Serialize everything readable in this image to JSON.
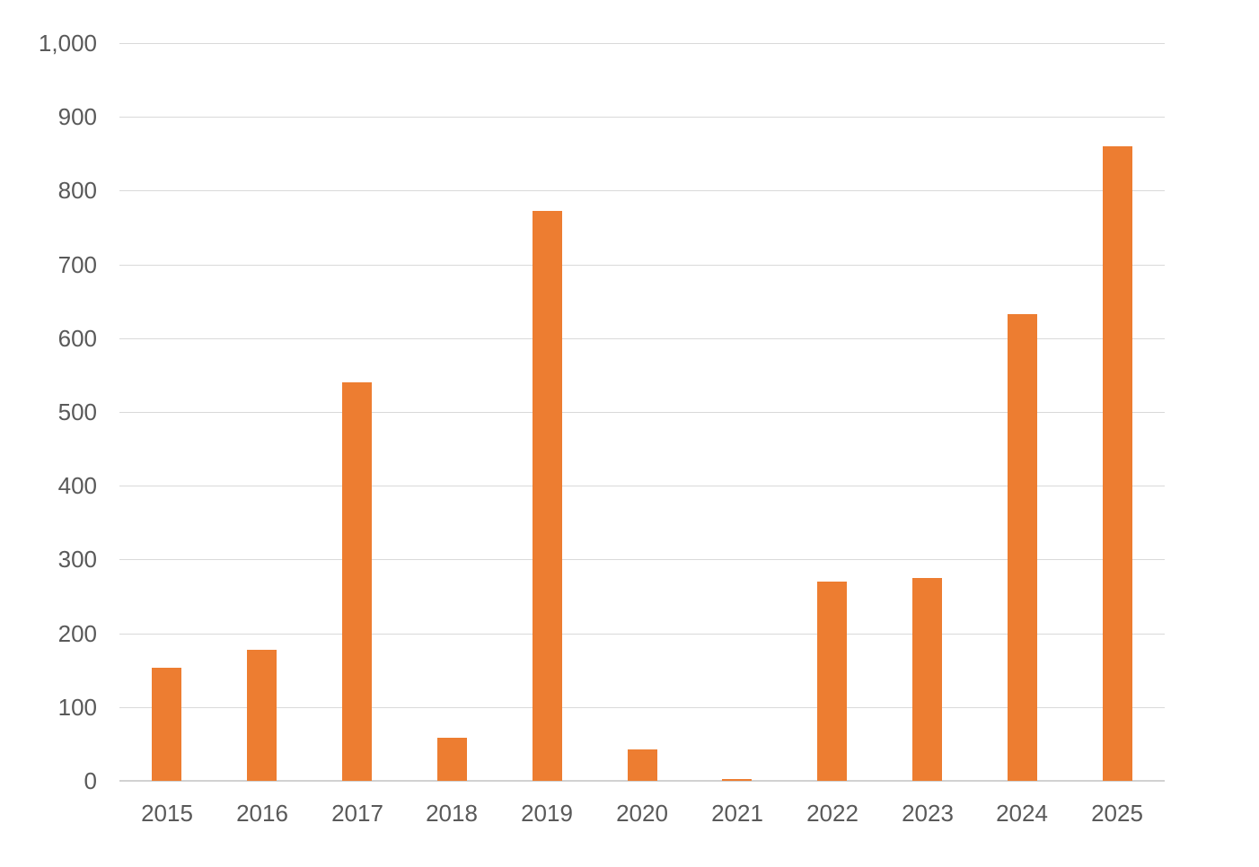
{
  "chart_data": {
    "type": "bar",
    "title": "",
    "xlabel": "",
    "ylabel": "",
    "categories": [
      "2015",
      "2016",
      "2017",
      "2018",
      "2019",
      "2020",
      "2021",
      "2022",
      "2023",
      "2024",
      "2025"
    ],
    "values": [
      153,
      178,
      540,
      58,
      772,
      43,
      2,
      270,
      275,
      632,
      860
    ],
    "ylim": [
      0,
      1000
    ],
    "ytick_step": 100,
    "ytick_labels": [
      "0",
      "100",
      "200",
      "300",
      "400",
      "500",
      "600",
      "700",
      "800",
      "900",
      "1,000"
    ],
    "grid": true,
    "legend_position": "none",
    "colors": {
      "bar": "#ED7D31",
      "gridline": "#d9d9d9",
      "axis_line": "#d2d2d2",
      "tick_label": "#595959",
      "background": "#ffffff"
    }
  }
}
